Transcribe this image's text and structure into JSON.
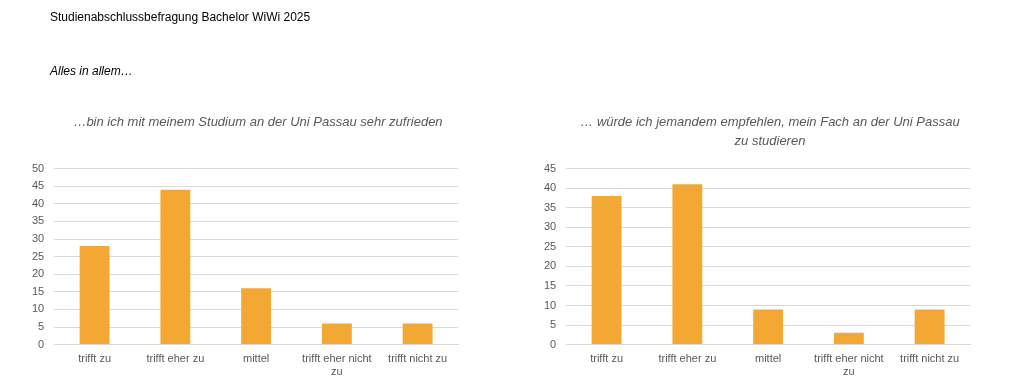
{
  "chart_data": [
    {
      "type": "bar",
      "title": "…bin ich mit meinem Studium an der Uni Passau sehr zufrieden",
      "annotations": [
        "Studienabschlussbefragung Bachelor WiWi 2025",
        "Alles in allem…"
      ],
      "categories": [
        "trifft zu",
        "trifft eher zu",
        "mittel",
        "trifft eher nicht zu",
        "trifft nicht zu"
      ],
      "values": [
        28,
        44,
        16,
        6,
        6
      ],
      "color": "#f4a834",
      "ylim": [
        0,
        50
      ],
      "yticks": [
        0,
        5,
        10,
        15,
        20,
        25,
        30,
        35,
        40,
        45,
        50
      ],
      "grid": "y"
    },
    {
      "type": "bar",
      "title": "… würde ich jemandem empfehlen, mein Fach an der Uni Passau zu studieren",
      "categories": [
        "trifft zu",
        "trifft eher zu",
        "mittel",
        "trifft eher nicht zu",
        "trifft nicht zu"
      ],
      "values": [
        38,
        41,
        9,
        3,
        9
      ],
      "color": "#f4a834",
      "ylim": [
        0,
        45
      ],
      "yticks": [
        0,
        5,
        10,
        15,
        20,
        25,
        30,
        35,
        40,
        45
      ],
      "grid": "y"
    }
  ]
}
